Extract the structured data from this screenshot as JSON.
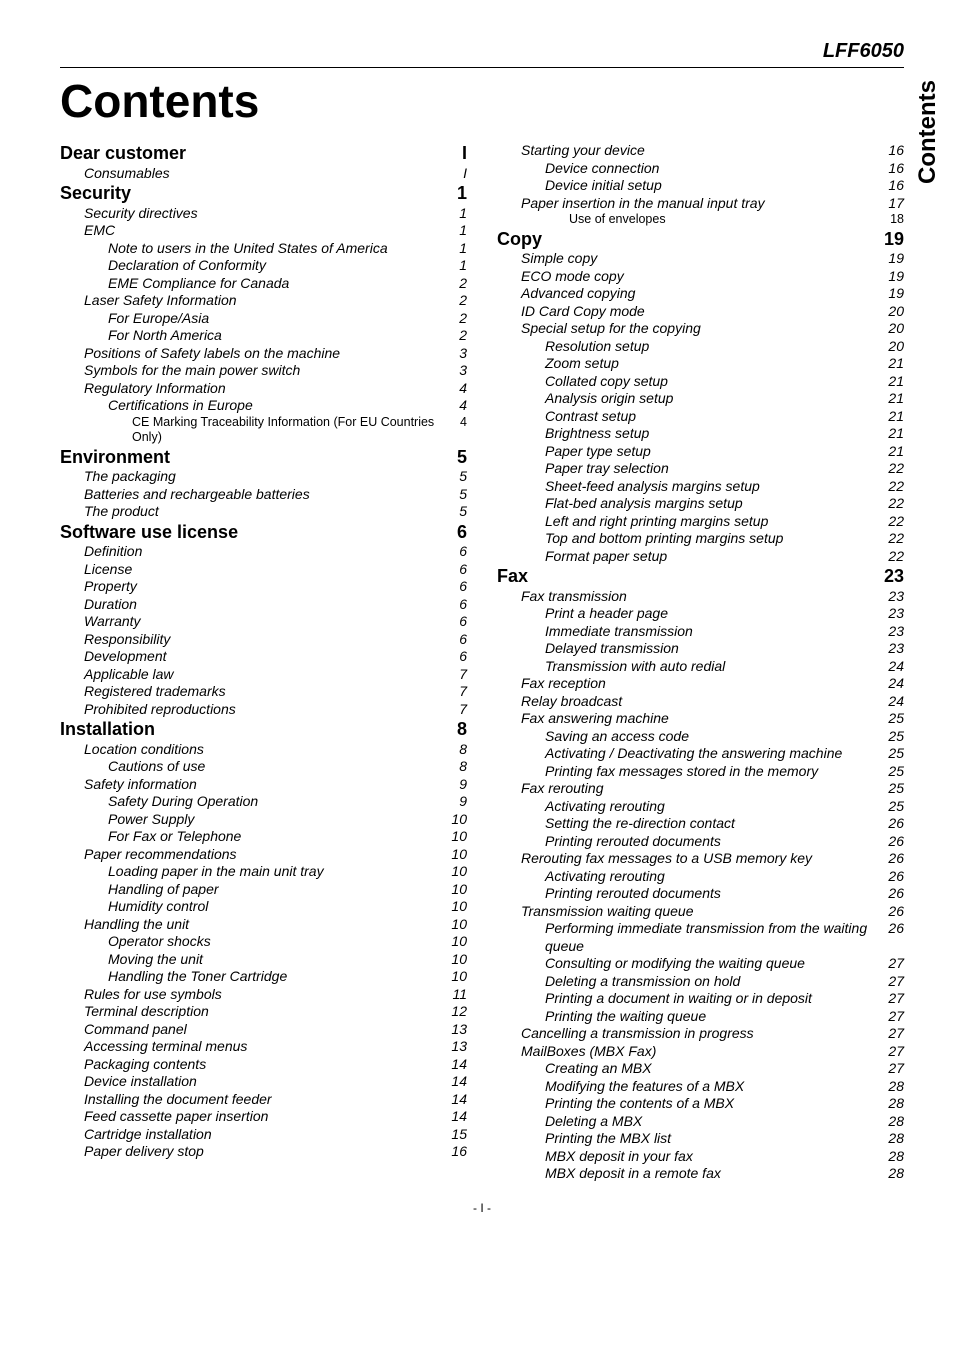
{
  "model": "LFF6050",
  "title": "Contents",
  "side_tab": "Contents",
  "footer": "- I -",
  "left": [
    {
      "lvl": 0,
      "label": "Dear customer",
      "page": "I"
    },
    {
      "lvl": 1,
      "label": "Consumables",
      "page": "I"
    },
    {
      "lvl": 0,
      "label": "Security",
      "page": "1"
    },
    {
      "lvl": 1,
      "label": "Security directives",
      "page": "1"
    },
    {
      "lvl": 1,
      "label": "EMC",
      "page": "1"
    },
    {
      "lvl": 2,
      "label": "Note to users in the United States of America",
      "page": "1"
    },
    {
      "lvl": 2,
      "label": "Declaration of Conformity",
      "page": "1"
    },
    {
      "lvl": 2,
      "label": "EME Compliance for Canada",
      "page": "2"
    },
    {
      "lvl": 1,
      "label": "Laser Safety Information",
      "page": "2"
    },
    {
      "lvl": 2,
      "label": "For Europe/Asia",
      "page": "2"
    },
    {
      "lvl": 2,
      "label": "For North America",
      "page": "2"
    },
    {
      "lvl": 1,
      "label": "Positions of Safety labels on the machine",
      "page": "3"
    },
    {
      "lvl": 1,
      "label": "Symbols for the main power switch",
      "page": "3"
    },
    {
      "lvl": 1,
      "label": "Regulatory Information",
      "page": "4"
    },
    {
      "lvl": 2,
      "label": "Certifications in Europe",
      "page": "4"
    },
    {
      "lvl": 3,
      "label": "CE Marking Traceability Information (For EU Countries Only)",
      "page": "4"
    },
    {
      "lvl": 0,
      "label": "Environment",
      "page": "5"
    },
    {
      "lvl": 1,
      "label": "The packaging",
      "page": "5"
    },
    {
      "lvl": 1,
      "label": "Batteries and rechargeable batteries",
      "page": "5"
    },
    {
      "lvl": 1,
      "label": "The product",
      "page": "5"
    },
    {
      "lvl": 0,
      "label": "Software use license",
      "page": "6"
    },
    {
      "lvl": 1,
      "label": "Definition",
      "page": "6"
    },
    {
      "lvl": 1,
      "label": "License",
      "page": "6"
    },
    {
      "lvl": 1,
      "label": "Property",
      "page": "6"
    },
    {
      "lvl": 1,
      "label": "Duration",
      "page": "6"
    },
    {
      "lvl": 1,
      "label": "Warranty",
      "page": "6"
    },
    {
      "lvl": 1,
      "label": "Responsibility",
      "page": "6"
    },
    {
      "lvl": 1,
      "label": "Development",
      "page": "6"
    },
    {
      "lvl": 1,
      "label": "Applicable law",
      "page": "7"
    },
    {
      "lvl": 1,
      "label": "Registered trademarks",
      "page": "7"
    },
    {
      "lvl": 1,
      "label": "Prohibited reproductions",
      "page": "7"
    },
    {
      "lvl": 0,
      "label": "Installation",
      "page": "8"
    },
    {
      "lvl": 1,
      "label": "Location conditions",
      "page": "8"
    },
    {
      "lvl": 2,
      "label": "Cautions of use",
      "page": "8"
    },
    {
      "lvl": 1,
      "label": "Safety information",
      "page": "9"
    },
    {
      "lvl": 2,
      "label": "Safety During Operation",
      "page": "9"
    },
    {
      "lvl": 2,
      "label": "Power Supply",
      "page": "10"
    },
    {
      "lvl": 2,
      "label": "For Fax or Telephone",
      "page": "10"
    },
    {
      "lvl": 1,
      "label": "Paper recommendations",
      "page": "10"
    },
    {
      "lvl": 2,
      "label": "Loading paper in the main unit tray",
      "page": "10"
    },
    {
      "lvl": 2,
      "label": "Handling of paper",
      "page": "10"
    },
    {
      "lvl": 2,
      "label": "Humidity control",
      "page": "10"
    },
    {
      "lvl": 1,
      "label": "Handling the unit",
      "page": "10"
    },
    {
      "lvl": 2,
      "label": "Operator shocks",
      "page": "10"
    },
    {
      "lvl": 2,
      "label": "Moving the unit",
      "page": "10"
    },
    {
      "lvl": 2,
      "label": "Handling the Toner Cartridge",
      "page": "10"
    },
    {
      "lvl": 1,
      "label": "Rules for use symbols",
      "page": "11"
    },
    {
      "lvl": 1,
      "label": "Terminal description",
      "page": "12"
    },
    {
      "lvl": 1,
      "label": "Command panel",
      "page": "13"
    },
    {
      "lvl": 1,
      "label": "Accessing terminal menus",
      "page": "13"
    },
    {
      "lvl": 1,
      "label": "Packaging contents",
      "page": "14"
    },
    {
      "lvl": 1,
      "label": "Device installation",
      "page": "14"
    },
    {
      "lvl": 1,
      "label": "Installing the document feeder",
      "page": "14"
    },
    {
      "lvl": 1,
      "label": "Feed cassette paper insertion",
      "page": "14"
    },
    {
      "lvl": 1,
      "label": "Cartridge installation",
      "page": "15"
    },
    {
      "lvl": 1,
      "label": "Paper delivery stop",
      "page": "16"
    }
  ],
  "right": [
    {
      "lvl": 1,
      "label": "Starting your device",
      "page": "16"
    },
    {
      "lvl": 2,
      "label": "Device connection",
      "page": "16"
    },
    {
      "lvl": 2,
      "label": "Device initial setup",
      "page": "16"
    },
    {
      "lvl": 1,
      "label": "Paper insertion in the manual input tray",
      "page": "17"
    },
    {
      "lvl": 3,
      "label": "Use of envelopes",
      "page": "18"
    },
    {
      "lvl": 0,
      "label": "Copy",
      "page": "19"
    },
    {
      "lvl": 1,
      "label": "Simple copy",
      "page": "19"
    },
    {
      "lvl": 1,
      "label": "ECO mode copy",
      "page": "19"
    },
    {
      "lvl": 1,
      "label": "Advanced copying",
      "page": "19"
    },
    {
      "lvl": 1,
      "label": "ID Card Copy mode",
      "page": "20"
    },
    {
      "lvl": 1,
      "label": "Special setup for the copying",
      "page": "20"
    },
    {
      "lvl": 2,
      "label": "Resolution setup",
      "page": "20"
    },
    {
      "lvl": 2,
      "label": "Zoom setup",
      "page": "21"
    },
    {
      "lvl": 2,
      "label": "Collated copy setup",
      "page": "21"
    },
    {
      "lvl": 2,
      "label": "Analysis origin setup",
      "page": "21"
    },
    {
      "lvl": 2,
      "label": "Contrast setup",
      "page": "21"
    },
    {
      "lvl": 2,
      "label": "Brightness setup",
      "page": "21"
    },
    {
      "lvl": 2,
      "label": "Paper type setup",
      "page": "21"
    },
    {
      "lvl": 2,
      "label": "Paper tray selection",
      "page": "22"
    },
    {
      "lvl": 2,
      "label": "Sheet-feed analysis margins setup",
      "page": "22"
    },
    {
      "lvl": 2,
      "label": "Flat-bed analysis margins setup",
      "page": "22"
    },
    {
      "lvl": 2,
      "label": "Left and right printing margins setup",
      "page": "22"
    },
    {
      "lvl": 2,
      "label": "Top and bottom printing margins setup",
      "page": "22"
    },
    {
      "lvl": 2,
      "label": "Format paper setup",
      "page": "22"
    },
    {
      "lvl": 0,
      "label": "Fax",
      "page": "23"
    },
    {
      "lvl": 1,
      "label": "Fax transmission",
      "page": "23"
    },
    {
      "lvl": 2,
      "label": "Print a header page",
      "page": "23"
    },
    {
      "lvl": 2,
      "label": "Immediate transmission",
      "page": "23"
    },
    {
      "lvl": 2,
      "label": "Delayed transmission",
      "page": "23"
    },
    {
      "lvl": 2,
      "label": "Transmission with auto redial",
      "page": "24"
    },
    {
      "lvl": 1,
      "label": "Fax reception",
      "page": "24"
    },
    {
      "lvl": 1,
      "label": "Relay broadcast",
      "page": "24"
    },
    {
      "lvl": 1,
      "label": "Fax answering machine",
      "page": "25"
    },
    {
      "lvl": 2,
      "label": "Saving an access code",
      "page": "25"
    },
    {
      "lvl": 2,
      "label": "Activating / Deactivating the answering machine",
      "page": "25"
    },
    {
      "lvl": 2,
      "label": "Printing fax messages stored in the memory",
      "page": "25"
    },
    {
      "lvl": 1,
      "label": "Fax rerouting",
      "page": "25"
    },
    {
      "lvl": 2,
      "label": "Activating rerouting",
      "page": "25"
    },
    {
      "lvl": 2,
      "label": "Setting the re-direction contact",
      "page": "26"
    },
    {
      "lvl": 2,
      "label": "Printing rerouted documents",
      "page": "26"
    },
    {
      "lvl": 1,
      "label": "Rerouting fax messages to a USB memory key",
      "page": "26"
    },
    {
      "lvl": 2,
      "label": "Activating rerouting",
      "page": "26"
    },
    {
      "lvl": 2,
      "label": "Printing rerouted documents",
      "page": "26"
    },
    {
      "lvl": 1,
      "label": "Transmission waiting queue",
      "page": "26"
    },
    {
      "lvl": 2,
      "label": "Performing immediate transmission from the waiting queue",
      "page": "26"
    },
    {
      "lvl": 2,
      "label": "Consulting or modifying the waiting queue",
      "page": "27"
    },
    {
      "lvl": 2,
      "label": "Deleting a transmission on hold",
      "page": "27"
    },
    {
      "lvl": 2,
      "label": "Printing a document in waiting or in deposit",
      "page": "27"
    },
    {
      "lvl": 2,
      "label": "Printing the waiting queue",
      "page": "27"
    },
    {
      "lvl": 1,
      "label": "Cancelling a transmission in progress",
      "page": "27"
    },
    {
      "lvl": 1,
      "label": "MailBoxes (MBX Fax)",
      "page": "27"
    },
    {
      "lvl": 2,
      "label": "Creating an MBX",
      "page": "27"
    },
    {
      "lvl": 2,
      "label": "Modifying the features of a MBX",
      "page": "28"
    },
    {
      "lvl": 2,
      "label": "Printing the contents of a MBX",
      "page": "28"
    },
    {
      "lvl": 2,
      "label": "Deleting a MBX",
      "page": "28"
    },
    {
      "lvl": 2,
      "label": "Printing the MBX list",
      "page": "28"
    },
    {
      "lvl": 2,
      "label": "MBX deposit in your fax",
      "page": "28"
    },
    {
      "lvl": 2,
      "label": "MBX deposit in a remote fax",
      "page": "28"
    }
  ]
}
